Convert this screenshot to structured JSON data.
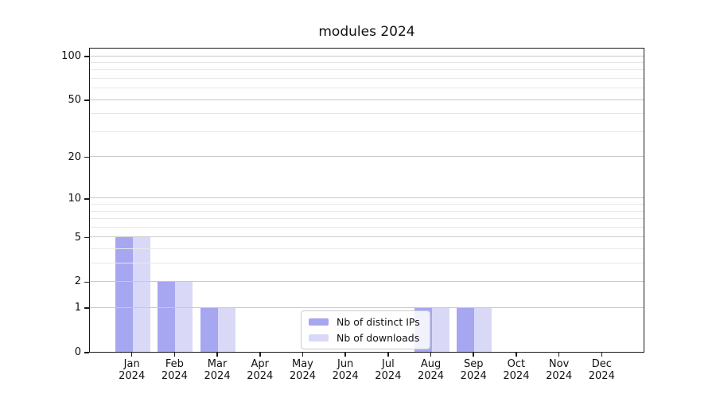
{
  "title": "modules 2024",
  "legend": {
    "items": [
      {
        "label": "Nb of distinct IPs",
        "color": "#a6a6f1"
      },
      {
        "label": "Nb of downloads",
        "color": "#d9d9f7"
      }
    ]
  },
  "chart_data": {
    "type": "bar",
    "title": "modules 2024",
    "xlabel": "",
    "ylabel": "",
    "yscale": "log1p",
    "ylim": [
      0,
      116
    ],
    "grid": "horizontal",
    "legend_position": "lower center inside",
    "y_major_ticks": [
      0,
      1,
      2,
      5,
      10,
      20,
      50,
      100
    ],
    "y_minor_ticks": [
      3,
      4,
      6,
      7,
      8,
      9,
      30,
      40,
      60,
      70,
      80,
      90
    ],
    "x_tick_labels": [
      {
        "month": "Jan",
        "year": "2024"
      },
      {
        "month": "Feb",
        "year": "2024"
      },
      {
        "month": "Mar",
        "year": "2024"
      },
      {
        "month": "Apr",
        "year": "2024"
      },
      {
        "month": "May",
        "year": "2024"
      },
      {
        "month": "Jun",
        "year": "2024"
      },
      {
        "month": "Jul",
        "year": "2024"
      },
      {
        "month": "Aug",
        "year": "2024"
      },
      {
        "month": "Sep",
        "year": "2024"
      },
      {
        "month": "Oct",
        "year": "2024"
      },
      {
        "month": "Nov",
        "year": "2024"
      },
      {
        "month": "Dec",
        "year": "2024"
      }
    ],
    "series": [
      {
        "name": "Nb of distinct IPs",
        "color": "#a6a6f1",
        "values": [
          5,
          2,
          1,
          0,
          0,
          0,
          0,
          1,
          1,
          0,
          0,
          0
        ]
      },
      {
        "name": "Nb of downloads",
        "color": "#d9d9f7",
        "values": [
          5,
          2,
          1,
          0,
          0,
          0,
          0,
          1,
          1,
          0,
          0,
          0
        ]
      }
    ]
  }
}
